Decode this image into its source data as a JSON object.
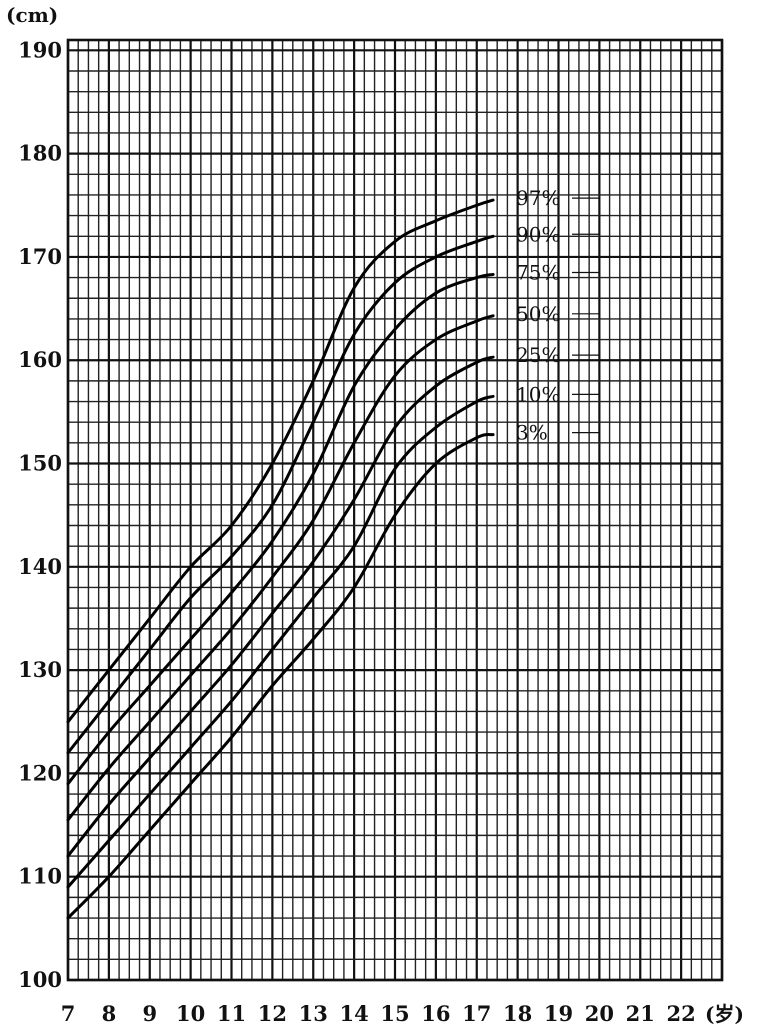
{
  "chart_data": {
    "type": "line",
    "ylabel": "(cm)",
    "xlabel": "(岁)",
    "xlim": [
      7,
      23
    ],
    "ylim": [
      100,
      191
    ],
    "x_ticks": [
      "7",
      "8",
      "9",
      "10",
      "11",
      "12",
      "13",
      "14",
      "15",
      "16",
      "17",
      "18",
      "19",
      "20",
      "21",
      "22"
    ],
    "y_ticks": [
      "100",
      "110",
      "120",
      "130",
      "140",
      "150",
      "160",
      "170",
      "180",
      "190"
    ],
    "grid": true,
    "legend": "inline-right",
    "series": [
      {
        "name": "97%",
        "points": [
          [
            7,
            125
          ],
          [
            8,
            130
          ],
          [
            9,
            135
          ],
          [
            10,
            140
          ],
          [
            11,
            144
          ],
          [
            12,
            150
          ],
          [
            13,
            158
          ],
          [
            14,
            167
          ],
          [
            15,
            171.5
          ],
          [
            16,
            173.5
          ],
          [
            17,
            175
          ],
          [
            17.4,
            175.5
          ]
        ]
      },
      {
        "name": "90%",
        "points": [
          [
            7,
            122
          ],
          [
            8,
            127
          ],
          [
            9,
            132
          ],
          [
            10,
            137
          ],
          [
            11,
            141
          ],
          [
            12,
            146
          ],
          [
            13,
            154
          ],
          [
            14,
            162.5
          ],
          [
            15,
            167.5
          ],
          [
            16,
            170
          ],
          [
            17,
            171.5
          ],
          [
            17.4,
            172
          ]
        ]
      },
      {
        "name": "75%",
        "points": [
          [
            7,
            119
          ],
          [
            8,
            124
          ],
          [
            9,
            128.5
          ],
          [
            10,
            133
          ],
          [
            11,
            137.5
          ],
          [
            12,
            142.5
          ],
          [
            13,
            149
          ],
          [
            14,
            157.5
          ],
          [
            15,
            163
          ],
          [
            16,
            166.5
          ],
          [
            17,
            168
          ],
          [
            17.4,
            168.3
          ]
        ]
      },
      {
        "name": "50%",
        "points": [
          [
            7,
            115.5
          ],
          [
            8,
            120.5
          ],
          [
            9,
            125
          ],
          [
            10,
            129.5
          ],
          [
            11,
            134
          ],
          [
            12,
            139
          ],
          [
            13,
            144.5
          ],
          [
            14,
            152
          ],
          [
            15,
            158.5
          ],
          [
            16,
            162
          ],
          [
            17,
            163.8
          ],
          [
            17.4,
            164.3
          ]
        ]
      },
      {
        "name": "25%",
        "points": [
          [
            7,
            112
          ],
          [
            8,
            117
          ],
          [
            9,
            121.5
          ],
          [
            10,
            126
          ],
          [
            11,
            130.5
          ],
          [
            12,
            135.5
          ],
          [
            13,
            140.5
          ],
          [
            14,
            146.5
          ],
          [
            15,
            153.5
          ],
          [
            16,
            157.5
          ],
          [
            17,
            159.8
          ],
          [
            17.4,
            160.3
          ]
        ]
      },
      {
        "name": "10%",
        "points": [
          [
            7,
            109
          ],
          [
            8,
            113.5
          ],
          [
            9,
            118
          ],
          [
            10,
            122.5
          ],
          [
            11,
            127
          ],
          [
            12,
            132
          ],
          [
            13,
            137
          ],
          [
            14,
            142
          ],
          [
            15,
            149.5
          ],
          [
            16,
            153.5
          ],
          [
            17,
            156
          ],
          [
            17.4,
            156.5
          ]
        ]
      },
      {
        "name": "3%",
        "points": [
          [
            7,
            106
          ],
          [
            8,
            110
          ],
          [
            9,
            114.5
          ],
          [
            10,
            119
          ],
          [
            11,
            123.5
          ],
          [
            12,
            128.5
          ],
          [
            13,
            133
          ],
          [
            14,
            138
          ],
          [
            15,
            145
          ],
          [
            16,
            150
          ],
          [
            17,
            152.5
          ],
          [
            17.4,
            152.8
          ]
        ]
      }
    ]
  }
}
